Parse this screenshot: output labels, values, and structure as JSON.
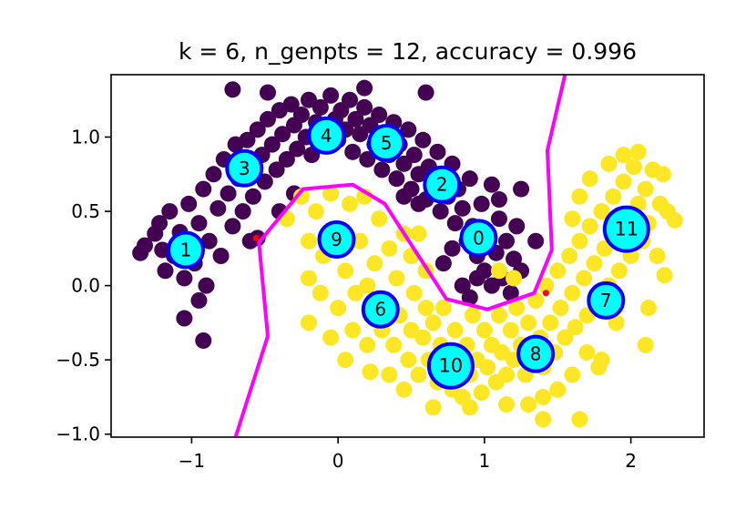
{
  "chart_data": {
    "type": "scatter",
    "title": "k = 6, n_genpts = 12, accuracy = 0.996",
    "xlabel": "",
    "ylabel": "",
    "xlim": [
      -1.55,
      2.5
    ],
    "ylim": [
      -1.02,
      1.42
    ],
    "xticks": [
      {
        "value": -1,
        "label": "−1"
      },
      {
        "value": 0,
        "label": "0"
      },
      {
        "value": 1,
        "label": "1"
      },
      {
        "value": 2,
        "label": "2"
      }
    ],
    "yticks": [
      {
        "value": 1.0,
        "label": "1.0"
      },
      {
        "value": 0.5,
        "label": "0.5"
      },
      {
        "value": 0.0,
        "label": "0.0"
      },
      {
        "value": -0.5,
        "label": "−0.5"
      },
      {
        "value": -1.0,
        "label": "−1.0"
      }
    ],
    "grid": false,
    "colors": {
      "class0": "#440154",
      "class1": "#fde725",
      "generated_fill": "#00ffff",
      "generated_edge": "#0000ff",
      "boundary": "#ff00ff",
      "misclassified": "#ff0000"
    },
    "class0_points": [
      [
        -1.32,
        0.27
      ],
      [
        -1.25,
        0.35
      ],
      [
        -1.2,
        0.24
      ],
      [
        -1.18,
        0.1
      ],
      [
        -1.22,
        0.42
      ],
      [
        -1.15,
        0.5
      ],
      [
        -1.12,
        0.2
      ],
      [
        -1.08,
        0.36
      ],
      [
        -1.05,
        0.05
      ],
      [
        -1.02,
        0.55
      ],
      [
        -0.98,
        0.15
      ],
      [
        -0.95,
        0.42
      ],
      [
        -0.92,
        0.65
      ],
      [
        -0.9,
        0.0
      ],
      [
        -0.88,
        0.3
      ],
      [
        -0.85,
        0.75
      ],
      [
        -0.82,
        0.52
      ],
      [
        -0.8,
        0.2
      ],
      [
        -0.78,
        0.85
      ],
      [
        -0.75,
        0.62
      ],
      [
        -0.72,
        0.4
      ],
      [
        -0.7,
        0.95
      ],
      [
        -0.68,
        0.72
      ],
      [
        -0.65,
        0.5
      ],
      [
        -0.62,
        0.98
      ],
      [
        -0.6,
        0.82
      ],
      [
        -0.58,
        0.6
      ],
      [
        -0.55,
        1.05
      ],
      [
        -0.52,
        0.88
      ],
      [
        -0.5,
        0.7
      ],
      [
        -0.48,
        1.12
      ],
      [
        -0.45,
        0.95
      ],
      [
        -0.42,
        0.78
      ],
      [
        -0.4,
        1.18
      ],
      [
        -0.38,
        1.02
      ],
      [
        -0.35,
        0.85
      ],
      [
        -0.32,
        1.22
      ],
      [
        -0.3,
        1.08
      ],
      [
        -0.28,
        0.92
      ],
      [
        -0.25,
        1.15
      ],
      [
        -0.22,
        1.0
      ],
      [
        -0.2,
        1.25
      ],
      [
        -0.18,
        0.88
      ],
      [
        -0.15,
        1.1
      ],
      [
        -0.12,
        1.2
      ],
      [
        -0.1,
        0.95
      ],
      [
        -0.08,
        1.05
      ],
      [
        -0.05,
        1.28
      ],
      [
        -0.02,
        1.12
      ],
      [
        0.0,
        0.98
      ],
      [
        0.02,
        1.18
      ],
      [
        0.05,
        1.05
      ],
      [
        0.08,
        1.25
      ],
      [
        0.1,
        0.9
      ],
      [
        0.12,
        1.12
      ],
      [
        0.15,
        1.02
      ],
      [
        0.18,
        1.2
      ],
      [
        0.2,
        0.85
      ],
      [
        0.22,
        1.08
      ],
      [
        0.25,
        0.95
      ],
      [
        0.28,
        1.15
      ],
      [
        0.3,
        0.78
      ],
      [
        0.32,
        1.02
      ],
      [
        0.35,
        0.88
      ],
      [
        0.38,
        1.1
      ],
      [
        0.4,
        0.72
      ],
      [
        0.42,
        0.95
      ],
      [
        0.45,
        0.82
      ],
      [
        0.48,
        1.05
      ],
      [
        0.5,
        0.65
      ],
      [
        0.52,
        0.88
      ],
      [
        0.55,
        0.75
      ],
      [
        0.58,
        0.98
      ],
      [
        0.6,
        0.58
      ],
      [
        0.62,
        0.8
      ],
      [
        0.65,
        0.68
      ],
      [
        0.68,
        0.9
      ],
      [
        0.7,
        0.5
      ],
      [
        0.72,
        0.72
      ],
      [
        0.75,
        0.6
      ],
      [
        0.78,
        0.82
      ],
      [
        0.8,
        0.42
      ],
      [
        0.82,
        0.65
      ],
      [
        0.85,
        0.52
      ],
      [
        0.88,
        0.3
      ],
      [
        0.9,
        0.72
      ],
      [
        0.92,
        0.4
      ],
      [
        0.95,
        0.2
      ],
      [
        0.98,
        0.55
      ],
      [
        1.0,
        0.1
      ],
      [
        1.02,
        0.35
      ],
      [
        1.05,
        0.0
      ],
      [
        1.08,
        0.22
      ],
      [
        1.1,
        0.45
      ],
      [
        1.12,
        0.05
      ],
      [
        1.15,
        0.3
      ],
      [
        1.18,
        -0.05
      ],
      [
        1.2,
        0.18
      ],
      [
        1.22,
        0.4
      ],
      [
        1.25,
        0.1
      ],
      [
        0.85,
        0.0
      ],
      [
        0.9,
        -0.08
      ],
      [
        0.95,
        0.05
      ],
      [
        0.78,
        0.25
      ],
      [
        0.72,
        0.15
      ],
      [
        1.05,
        0.68
      ],
      [
        1.1,
        0.58
      ],
      [
        0.55,
        0.55
      ],
      [
        0.45,
        0.6
      ],
      [
        -1.05,
        -0.22
      ],
      [
        -0.95,
        -0.1
      ],
      [
        -0.92,
        -0.37
      ],
      [
        -1.35,
        0.22
      ],
      [
        -0.72,
        1.32
      ],
      [
        -0.48,
        1.3
      ],
      [
        0.18,
        1.33
      ],
      [
        0.6,
        1.3
      ],
      [
        1.25,
        0.65
      ],
      [
        1.35,
        0.3
      ],
      [
        -0.3,
        0.62
      ],
      [
        -0.4,
        0.5
      ],
      [
        -0.6,
        0.3
      ],
      [
        -0.55,
        0.32
      ]
    ],
    "class1_points": [
      [
        -0.35,
        0.45
      ],
      [
        -0.25,
        0.6
      ],
      [
        -0.2,
        0.3
      ],
      [
        -0.15,
        0.5
      ],
      [
        -0.1,
        0.2
      ],
      [
        -0.05,
        0.62
      ],
      [
        0.0,
        0.35
      ],
      [
        0.05,
        0.1
      ],
      [
        0.08,
        0.55
      ],
      [
        0.12,
        -0.05
      ],
      [
        0.15,
        0.3
      ],
      [
        0.18,
        0.6
      ],
      [
        0.2,
        0.0
      ],
      [
        0.22,
        -0.2
      ],
      [
        0.25,
        0.15
      ],
      [
        0.28,
        0.45
      ],
      [
        0.3,
        -0.3
      ],
      [
        0.32,
        -0.1
      ],
      [
        0.35,
        0.25
      ],
      [
        0.38,
        -0.4
      ],
      [
        0.4,
        0.05
      ],
      [
        0.42,
        -0.2
      ],
      [
        0.45,
        0.35
      ],
      [
        0.48,
        -0.5
      ],
      [
        0.5,
        -0.3
      ],
      [
        0.52,
        -0.05
      ],
      [
        0.55,
        -0.6
      ],
      [
        0.58,
        -0.35
      ],
      [
        0.6,
        -0.15
      ],
      [
        0.62,
        -0.5
      ],
      [
        0.65,
        -0.25
      ],
      [
        0.68,
        -0.65
      ],
      [
        0.7,
        -0.4
      ],
      [
        0.72,
        -0.15
      ],
      [
        0.75,
        -0.55
      ],
      [
        0.78,
        -0.7
      ],
      [
        0.8,
        -0.3
      ],
      [
        0.82,
        -0.5
      ],
      [
        0.85,
        -0.75
      ],
      [
        0.88,
        -0.4
      ],
      [
        0.9,
        -0.6
      ],
      [
        0.92,
        -0.2
      ],
      [
        0.95,
        -0.5
      ],
      [
        0.98,
        -0.72
      ],
      [
        1.0,
        -0.3
      ],
      [
        1.02,
        -0.55
      ],
      [
        1.05,
        -0.4
      ],
      [
        1.08,
        -0.65
      ],
      [
        1.1,
        -0.2
      ],
      [
        1.12,
        -0.45
      ],
      [
        1.15,
        -0.6
      ],
      [
        1.18,
        -0.3
      ],
      [
        1.2,
        -0.5
      ],
      [
        1.22,
        -0.15
      ],
      [
        1.25,
        -0.4
      ],
      [
        1.28,
        -0.6
      ],
      [
        1.3,
        -0.25
      ],
      [
        1.32,
        -0.5
      ],
      [
        1.35,
        -0.1
      ],
      [
        1.38,
        -0.35
      ],
      [
        1.4,
        -0.55
      ],
      [
        1.42,
        0.0
      ],
      [
        1.45,
        -0.25
      ],
      [
        1.48,
        -0.45
      ],
      [
        1.5,
        0.1
      ],
      [
        1.52,
        -0.15
      ],
      [
        1.55,
        -0.35
      ],
      [
        1.58,
        0.2
      ],
      [
        1.6,
        -0.05
      ],
      [
        1.62,
        -0.28
      ],
      [
        1.65,
        0.3
      ],
      [
        1.68,
        0.05
      ],
      [
        1.7,
        -0.2
      ],
      [
        1.72,
        0.4
      ],
      [
        1.75,
        0.15
      ],
      [
        1.78,
        -0.1
      ],
      [
        1.8,
        0.5
      ],
      [
        1.82,
        0.25
      ],
      [
        1.85,
        0.0
      ],
      [
        1.88,
        0.6
      ],
      [
        1.9,
        0.35
      ],
      [
        1.92,
        0.1
      ],
      [
        1.95,
        0.7
      ],
      [
        1.98,
        0.45
      ],
      [
        2.0,
        0.2
      ],
      [
        2.02,
        0.8
      ],
      [
        2.05,
        0.55
      ],
      [
        2.08,
        0.3
      ],
      [
        2.1,
        0.65
      ],
      [
        2.12,
        0.42
      ],
      [
        2.15,
        0.78
      ],
      [
        2.18,
        0.2
      ],
      [
        2.2,
        0.55
      ],
      [
        1.6,
        0.45
      ],
      [
        1.65,
        0.6
      ],
      [
        1.72,
        0.72
      ],
      [
        1.85,
        0.82
      ],
      [
        1.95,
        0.88
      ],
      [
        2.05,
        0.9
      ],
      [
        2.22,
        0.75
      ],
      [
        2.25,
        0.5
      ],
      [
        2.3,
        0.44
      ],
      [
        2.23,
        0.07
      ],
      [
        2.12,
        -0.15
      ],
      [
        2.1,
        -0.4
      ],
      [
        1.8,
        -0.5
      ],
      [
        1.9,
        -0.25
      ],
      [
        1.78,
        -0.55
      ],
      [
        1.7,
        -0.45
      ],
      [
        1.6,
        -0.6
      ],
      [
        1.5,
        -0.7
      ],
      [
        1.4,
        -0.75
      ],
      [
        1.3,
        -0.8
      ],
      [
        1.15,
        -0.8
      ],
      [
        1.4,
        -0.9
      ],
      [
        0.45,
        -0.7
      ],
      [
        0.35,
        -0.6
      ],
      [
        0.2,
        -0.4
      ],
      [
        0.1,
        -0.3
      ],
      [
        0.0,
        -0.15
      ],
      [
        -0.12,
        -0.05
      ],
      [
        -0.2,
        0.05
      ],
      [
        -0.2,
        -0.25
      ],
      [
        -0.05,
        -0.35
      ],
      [
        0.05,
        -0.5
      ],
      [
        0.22,
        -0.58
      ],
      [
        1.65,
        -0.9
      ],
      [
        0.9,
        -0.82
      ],
      [
        0.65,
        -0.82
      ],
      [
        1.1,
        0.1
      ],
      [
        1.2,
        0.05
      ],
      [
        0.6,
        0.1
      ],
      [
        0.5,
        0.2
      ],
      [
        0.55,
        0.35
      ]
    ],
    "generated_points": [
      {
        "id": "0",
        "x": 0.96,
        "y": 0.32
      },
      {
        "id": "1",
        "x": -1.04,
        "y": 0.24
      },
      {
        "id": "2",
        "x": 0.71,
        "y": 0.68
      },
      {
        "id": "3",
        "x": -0.64,
        "y": 0.79
      },
      {
        "id": "4",
        "x": -0.08,
        "y": 1.01
      },
      {
        "id": "5",
        "x": 0.33,
        "y": 0.96
      },
      {
        "id": "6",
        "x": 0.29,
        "y": -0.16
      },
      {
        "id": "7",
        "x": 1.83,
        "y": -0.1
      },
      {
        "id": "8",
        "x": 1.35,
        "y": -0.46
      },
      {
        "id": "9",
        "x": -0.01,
        "y": 0.31
      },
      {
        "id": "10",
        "x": 0.77,
        "y": -0.54
      },
      {
        "id": "11",
        "x": 1.97,
        "y": 0.38
      }
    ],
    "large_markers": [
      "10",
      "11"
    ],
    "misclassified_points": [
      [
        -0.56,
        0.32
      ],
      [
        1.42,
        -0.05
      ]
    ],
    "decision_boundary": [
      [
        -0.7,
        -1.02
      ],
      [
        -0.48,
        -0.34
      ],
      [
        -0.54,
        0.29
      ],
      [
        -0.24,
        0.65
      ],
      [
        0.1,
        0.68
      ],
      [
        0.32,
        0.55
      ],
      [
        0.74,
        -0.09
      ],
      [
        1.02,
        -0.16
      ],
      [
        1.34,
        -0.05
      ],
      [
        1.46,
        0.24
      ],
      [
        1.43,
        0.91
      ],
      [
        1.55,
        1.42
      ]
    ]
  }
}
